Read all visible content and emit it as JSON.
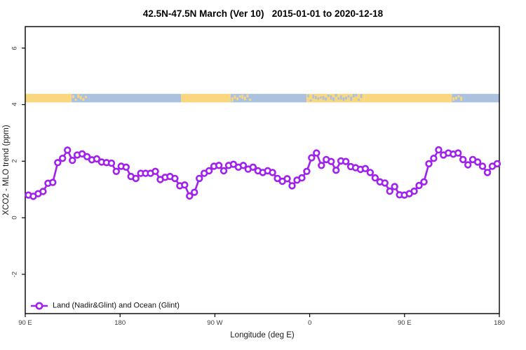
{
  "title": "42.5N-47.5N March (Ver 10)   2015-01-01 to 2020-12-18",
  "axes": {
    "x": {
      "label": "Longitude (deg E)",
      "ticks": [
        {
          "value": 90,
          "label": "90 E"
        },
        {
          "value": 180,
          "label": "180"
        },
        {
          "value": 270,
          "label": "90 W"
        },
        {
          "value": 360,
          "label": "0"
        },
        {
          "value": 450,
          "label": "90 E"
        },
        {
          "value": 540,
          "label": "180"
        }
      ]
    },
    "y": {
      "label": "XCO2 - MLO trend (ppm)",
      "ticks": [
        {
          "value": 6,
          "label": "6"
        },
        {
          "value": 4,
          "label": "4"
        },
        {
          "value": 2,
          "label": "2"
        },
        {
          "value": 0,
          "label": "0"
        },
        {
          "value": -2,
          "label": "-2"
        }
      ]
    }
  },
  "legend": {
    "label": "Land (Nadir&Glint) and Ocean (Glint)"
  },
  "colors": {
    "series": "#A020F0",
    "marker_fill": "#ffffff",
    "land": "#FAD77E",
    "ocean": "#ABC1E0",
    "frame": "#000000",
    "tick_text": "#3d3d3d"
  },
  "chart_data": {
    "type": "line",
    "title": "42.5N-47.5N March (Ver 10)   2015-01-01 to 2020-12-18",
    "xlabel": "Longitude (deg E)",
    "ylabel": "XCO2 - MLO trend (ppm)",
    "xlim": [
      90,
      540
    ],
    "ylim": [
      -3.39,
      6.76
    ],
    "grid": false,
    "legend_position": "bottom-left",
    "x_axis_note": "longitude wraps: 90E..180..90W..0..90E..180, ticks every 90 deg",
    "series": [
      {
        "name": "Land (Nadir&Glint) and Ocean (Glint)",
        "marker": "open-circle",
        "lon_start": 93,
        "lon_step": 4.635,
        "values": [
          0.8,
          0.76,
          0.85,
          0.93,
          1.22,
          1.25,
          1.95,
          2.1,
          2.39,
          2.03,
          2.22,
          2.26,
          2.16,
          2.05,
          2.08,
          1.97,
          1.95,
          1.93,
          1.64,
          1.82,
          1.79,
          1.46,
          1.39,
          1.57,
          1.57,
          1.57,
          1.64,
          1.35,
          1.43,
          1.46,
          1.39,
          1.13,
          1.16,
          0.77,
          0.9,
          1.39,
          1.57,
          1.66,
          1.82,
          1.85,
          1.66,
          1.85,
          1.89,
          1.79,
          1.85,
          1.72,
          1.79,
          1.66,
          1.6,
          1.66,
          1.6,
          1.39,
          1.29,
          1.38,
          1.13,
          1.33,
          1.41,
          1.64,
          2.12,
          2.29,
          1.85,
          2.06,
          1.99,
          1.68,
          2.01,
          1.99,
          1.81,
          1.77,
          1.71,
          1.74,
          1.6,
          1.41,
          1.27,
          1.23,
          0.94,
          1.1,
          0.81,
          0.8,
          0.85,
          0.94,
          1.14,
          1.27,
          1.91,
          2.1,
          2.4,
          2.22,
          2.29,
          2.25,
          2.29,
          2.06,
          1.87,
          2.06,
          1.97,
          1.82,
          1.6,
          1.82,
          1.91
        ]
      }
    ],
    "surface_band": {
      "description": "land(yellow)/ocean(blue) strip along longitude",
      "value_range": [
        4.08,
        4.38
      ],
      "segments": [
        {
          "type": "land",
          "from": 90,
          "to": 134
        },
        {
          "type": "mixed_ocean",
          "from": 134,
          "to": 151
        },
        {
          "type": "ocean",
          "from": 151,
          "to": 238
        },
        {
          "type": "land",
          "from": 238,
          "to": 285
        },
        {
          "type": "mixed_ocean",
          "from": 285,
          "to": 306
        },
        {
          "type": "ocean",
          "from": 306,
          "to": 357
        },
        {
          "type": "mixed_land",
          "from": 357,
          "to": 412
        },
        {
          "type": "land",
          "from": 412,
          "to": 495
        },
        {
          "type": "mixed_ocean",
          "from": 495,
          "to": 507
        },
        {
          "type": "ocean",
          "from": 507,
          "to": 540
        }
      ]
    }
  }
}
